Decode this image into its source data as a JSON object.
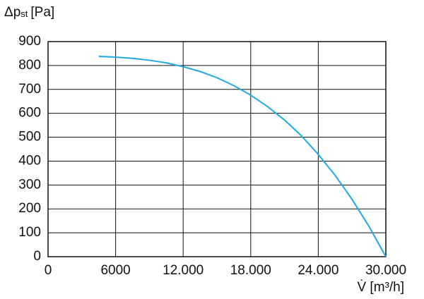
{
  "chart_data": {
    "type": "line",
    "ylabel": {
      "symbol": "Δp",
      "subscript": "st",
      "unit": "[Pa]"
    },
    "xlabel": "V̇ [m³/h]",
    "x": [
      4500,
      6000,
      7500,
      9000,
      10500,
      12000,
      13500,
      15000,
      16500,
      18000,
      19500,
      21000,
      22500,
      24000,
      25500,
      27000,
      28500,
      30000
    ],
    "series": [
      {
        "color": "#1eaadf",
        "values": [
          838,
          835,
          830,
          822,
          811,
          795,
          775,
          749,
          716,
          676,
          628,
          572,
          506,
          428,
          340,
          240,
          127,
          0
        ]
      }
    ],
    "xlim": [
      0,
      30000
    ],
    "xticks": [
      0,
      6000,
      {
        "value": 12000,
        "label": "12.000"
      },
      {
        "value": 18000,
        "label": "18.000"
      },
      {
        "value": 24000,
        "label": "24.000"
      },
      {
        "value": 30000,
        "label": "30.000"
      }
    ],
    "ylim": [
      0,
      900
    ],
    "yticks": [
      0,
      100,
      200,
      300,
      400,
      500,
      600,
      700,
      800,
      900
    ],
    "grid": true
  }
}
